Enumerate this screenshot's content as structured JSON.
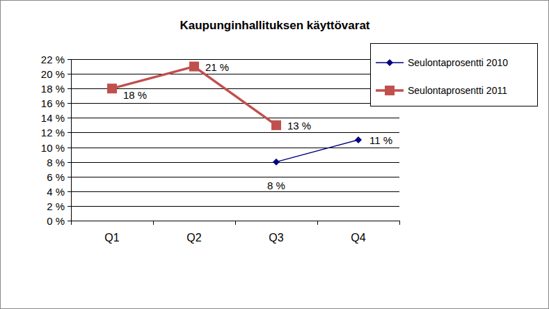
{
  "chart_data": {
    "type": "line",
    "title": "Kaupunginhallituksen käyttövarat",
    "categories": [
      "Q1",
      "Q2",
      "Q3",
      "Q4"
    ],
    "series": [
      {
        "name": "Seulontaprosentti  2010",
        "color": "#000080",
        "marker": "diamond",
        "line_style": "solid",
        "values": [
          null,
          null,
          8,
          11
        ],
        "value_labels": [
          null,
          null,
          "8 %",
          "11 %"
        ]
      },
      {
        "name": "Seulontaprosentti  2011",
        "color": "#c0504d",
        "marker": "square",
        "line_style": "solid",
        "values": [
          18,
          21,
          13,
          null
        ],
        "value_labels": [
          "18 %",
          "21 %",
          "13 %",
          null
        ]
      }
    ],
    "ylim": [
      0,
      22
    ],
    "yticks": [
      {
        "value": 0,
        "label": "0 %"
      },
      {
        "value": 2,
        "label": "2 %"
      },
      {
        "value": 4,
        "label": "4 %"
      },
      {
        "value": 6,
        "label": "6 %"
      },
      {
        "value": 8,
        "label": "8 %"
      },
      {
        "value": 10,
        "label": "10 %"
      },
      {
        "value": 12,
        "label": "12 %"
      },
      {
        "value": 14,
        "label": "14 %"
      },
      {
        "value": 16,
        "label": "16 %"
      },
      {
        "value": 18,
        "label": "18 %"
      },
      {
        "value": 20,
        "label": "20 %"
      },
      {
        "value": 22,
        "label": "22 %"
      }
    ],
    "grid": true,
    "legend": "right",
    "data_labels": true
  }
}
